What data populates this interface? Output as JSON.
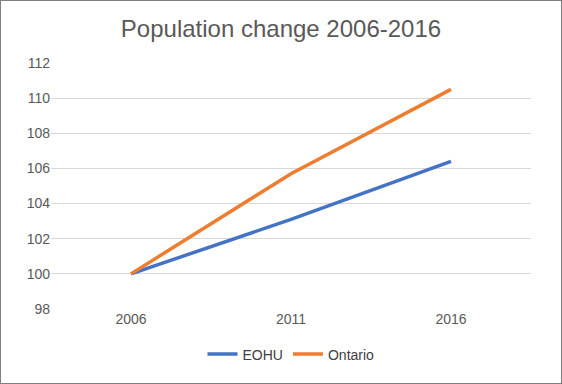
{
  "chart_data": {
    "type": "line",
    "title": "Population change 2006-2016",
    "categories": [
      "2006",
      "2011",
      "2016"
    ],
    "series": [
      {
        "name": "EOHU",
        "color": "#4472c4",
        "values": [
          100,
          103.1,
          106.4
        ]
      },
      {
        "name": "Ontario",
        "color": "#ed7d31",
        "values": [
          100,
          105.7,
          110.5
        ]
      }
    ],
    "ylim": [
      98,
      112
    ],
    "yticks": [
      98,
      100,
      102,
      104,
      106,
      108,
      110,
      112
    ],
    "grid": true,
    "legend": "bottom"
  }
}
